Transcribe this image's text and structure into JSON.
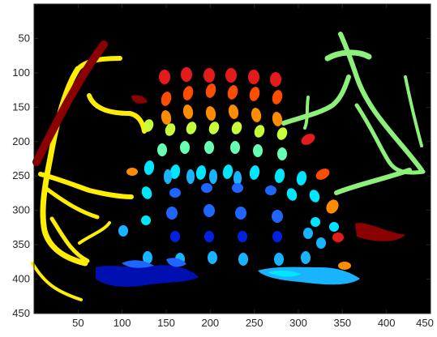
{
  "axes": {
    "xlim": [
      0,
      450
    ],
    "ylim": [
      0,
      450
    ],
    "y_reversed": true,
    "background": "#000000",
    "x_ticks": [
      "50",
      "100",
      "150",
      "200",
      "250",
      "300",
      "350",
      "400",
      "450"
    ],
    "y_ticks": [
      "50",
      "100",
      "150",
      "200",
      "250",
      "300",
      "350",
      "400",
      "450"
    ]
  },
  "label_image": {
    "description_colormap": "jet",
    "colors": {
      "dark_red": "#8b0000",
      "red": "#e51a1a",
      "orange_red": "#ff4d00",
      "orange": "#ff8c00",
      "yellow": "#ffee00",
      "green_yellow": "#c6ff3a",
      "light_green": "#8cf07a",
      "mint": "#66ffb3",
      "cyan": "#00e6ff",
      "sky": "#19b4ff",
      "blue": "#1f66ff",
      "deep_blue": "#0022e0",
      "navy": "#0010b0"
    }
  }
}
